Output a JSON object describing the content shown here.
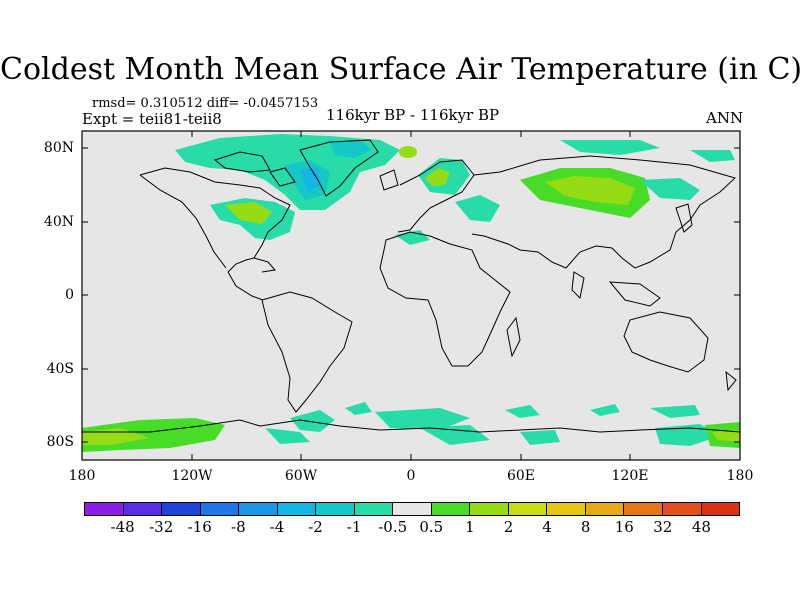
{
  "title": "Coldest Month Mean Surface Air Temperature (in C)",
  "stats": "rmsd= 0.310512 diff= -0.0457153",
  "expt": "Expt = teii81-teii8",
  "center_label": "116kyr BP - 116kyr BP",
  "season": "ANN",
  "lat_labels": [
    "80N",
    "40N",
    "0",
    "40S",
    "80S"
  ],
  "lon_labels": [
    "180",
    "120W",
    "60W",
    "0",
    "60E",
    "120E",
    "180"
  ],
  "colorbar": {
    "labels": [
      "-48",
      "-32",
      "-16",
      "-8",
      "-4",
      "-2",
      "-1",
      "-0.5",
      "0.5",
      "1",
      "2",
      "4",
      "8",
      "16",
      "32",
      "48"
    ],
    "colors": [
      "#8a1ee6",
      "#5a2ee6",
      "#1e46dc",
      "#1e78e6",
      "#1e96e6",
      "#14b4e6",
      "#14c8c8",
      "#28dcaa",
      "#e6e6e6",
      "#46dc28",
      "#96dc14",
      "#c8dc14",
      "#e6c814",
      "#e6aa14",
      "#e67814",
      "#e6501e",
      "#dc3214"
    ]
  },
  "map": {
    "background_color": "#e6e6e6",
    "anomaly_regions": [
      "Arctic Canada / Greenland",
      "Eastern North America",
      "Northern Siberia",
      "Scandinavia",
      "Antarctic coast",
      "Southern Ocean"
    ]
  }
}
